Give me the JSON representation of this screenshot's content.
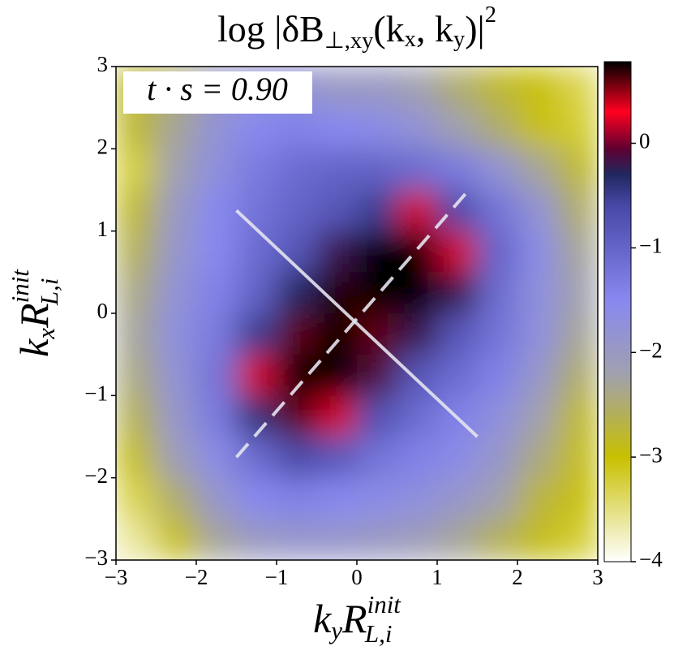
{
  "chart_data": {
    "type": "heatmap",
    "title": [
      "log |δB",
      "⊥,xy",
      "(k",
      "x",
      ", k",
      "y",
      ")|",
      "2"
    ],
    "annotation": "t · s = 0.90",
    "xlabel": [
      "k",
      "y",
      "R",
      "init",
      "L,i"
    ],
    "ylabel": [
      "k",
      "x",
      "R",
      "init",
      "L,i"
    ],
    "x": [
      -2.75,
      -2.25,
      -1.75,
      -1.25,
      -0.75,
      -0.25,
      0.25,
      0.75,
      1.25,
      1.75,
      2.25,
      2.75
    ],
    "y": [
      2.75,
      2.25,
      1.75,
      1.25,
      0.75,
      0.25,
      -0.25,
      -0.75,
      -1.25,
      -1.75,
      -2.25,
      -2.75
    ],
    "z": [
      [
        -2.8,
        -2.5,
        -2.0,
        -1.8,
        -1.8,
        -2.0,
        -2.0,
        -2.2,
        -2.5,
        -2.8,
        -3.0,
        -3.3
      ],
      [
        -2.8,
        -2.3,
        -1.8,
        -1.5,
        -1.4,
        -1.5,
        -1.6,
        -1.8,
        -2.2,
        -2.5,
        -3.0,
        -3.2
      ],
      [
        -3.2,
        -2.2,
        -1.7,
        -1.3,
        -1.1,
        -1.0,
        -1.0,
        -1.1,
        -1.3,
        -1.8,
        -2.3,
        -2.8
      ],
      [
        -2.8,
        -2.0,
        -1.5,
        -1.2,
        -1.0,
        -0.8,
        -0.5,
        0.2,
        -0.6,
        -1.2,
        -1.8,
        -2.5
      ],
      [
        -2.6,
        -1.9,
        -1.5,
        -1.1,
        -0.8,
        -0.2,
        0.8,
        0.8,
        0.2,
        -1.0,
        -1.6,
        -2.3
      ],
      [
        -2.4,
        -1.8,
        -1.4,
        -1.0,
        -0.3,
        0.7,
        0.8,
        0.8,
        -0.2,
        -1.1,
        -1.7,
        -2.2
      ],
      [
        -2.3,
        -1.7,
        -1.3,
        -0.5,
        0.6,
        0.8,
        0.6,
        -0.2,
        -0.8,
        -1.2,
        -1.7,
        -2.3
      ],
      [
        -2.4,
        -1.8,
        -1.2,
        0.2,
        0.8,
        0.8,
        -0.1,
        -0.8,
        -1.1,
        -1.4,
        -1.9,
        -2.5
      ],
      [
        -2.6,
        -1.9,
        -1.3,
        -0.4,
        0.6,
        0.2,
        -0.7,
        -1.1,
        -1.4,
        -1.7,
        -2.2,
        -2.8
      ],
      [
        -2.9,
        -2.1,
        -1.6,
        -1.1,
        -0.6,
        -0.8,
        -1.2,
        -1.4,
        -1.6,
        -1.9,
        -2.4,
        -2.9
      ],
      [
        -3.3,
        -2.5,
        -1.9,
        -1.5,
        -1.4,
        -1.5,
        -1.6,
        -1.7,
        -1.9,
        -2.2,
        -2.7,
        -3.0
      ],
      [
        -3.6,
        -3.0,
        -2.3,
        -2.0,
        -1.9,
        -1.9,
        -2.0,
        -2.1,
        -2.3,
        -2.6,
        -2.9,
        -3.2
      ]
    ],
    "xlim": [
      -3,
      3
    ],
    "ylim": [
      -3,
      3
    ],
    "xticks": [
      {
        "value": -3,
        "label": "−3"
      },
      {
        "value": -2,
        "label": "−2"
      },
      {
        "value": -1,
        "label": "−1"
      },
      0,
      1,
      2,
      3
    ],
    "yticks": [
      {
        "value": -3,
        "label": "−3"
      },
      {
        "value": -2,
        "label": "−2"
      },
      {
        "value": -1,
        "label": "−1"
      },
      0,
      1,
      2,
      3
    ],
    "clim": [
      -4,
      0.78
    ],
    "cticks": [
      {
        "value": -4,
        "label": "−4"
      },
      {
        "value": -3,
        "label": "−3"
      },
      {
        "value": -2,
        "label": "−2"
      },
      {
        "value": -1,
        "label": "−1"
      },
      0
    ],
    "colorscale": [
      [
        -4,
        "#ffffff"
      ],
      [
        -3,
        "#c8c000"
      ],
      [
        -2.2,
        "#a0a0b0"
      ],
      [
        -1.5,
        "#8888f0"
      ],
      [
        -0.6,
        "#4848a8"
      ],
      [
        -0.3,
        "#202860"
      ],
      [
        -0.05,
        "#600030"
      ],
      [
        0.3,
        "#ff0020"
      ],
      [
        0.78,
        "#000000"
      ]
    ],
    "lines": [
      {
        "x": [
          -1.5,
          1.5
        ],
        "y": [
          1.25,
          -1.5
        ],
        "style": "solid",
        "color": "#e4e4f0"
      },
      {
        "x": [
          -1.5,
          1.35
        ],
        "y": [
          -1.75,
          1.45
        ],
        "style": "dashed",
        "color": "#e4e4f0"
      }
    ]
  }
}
